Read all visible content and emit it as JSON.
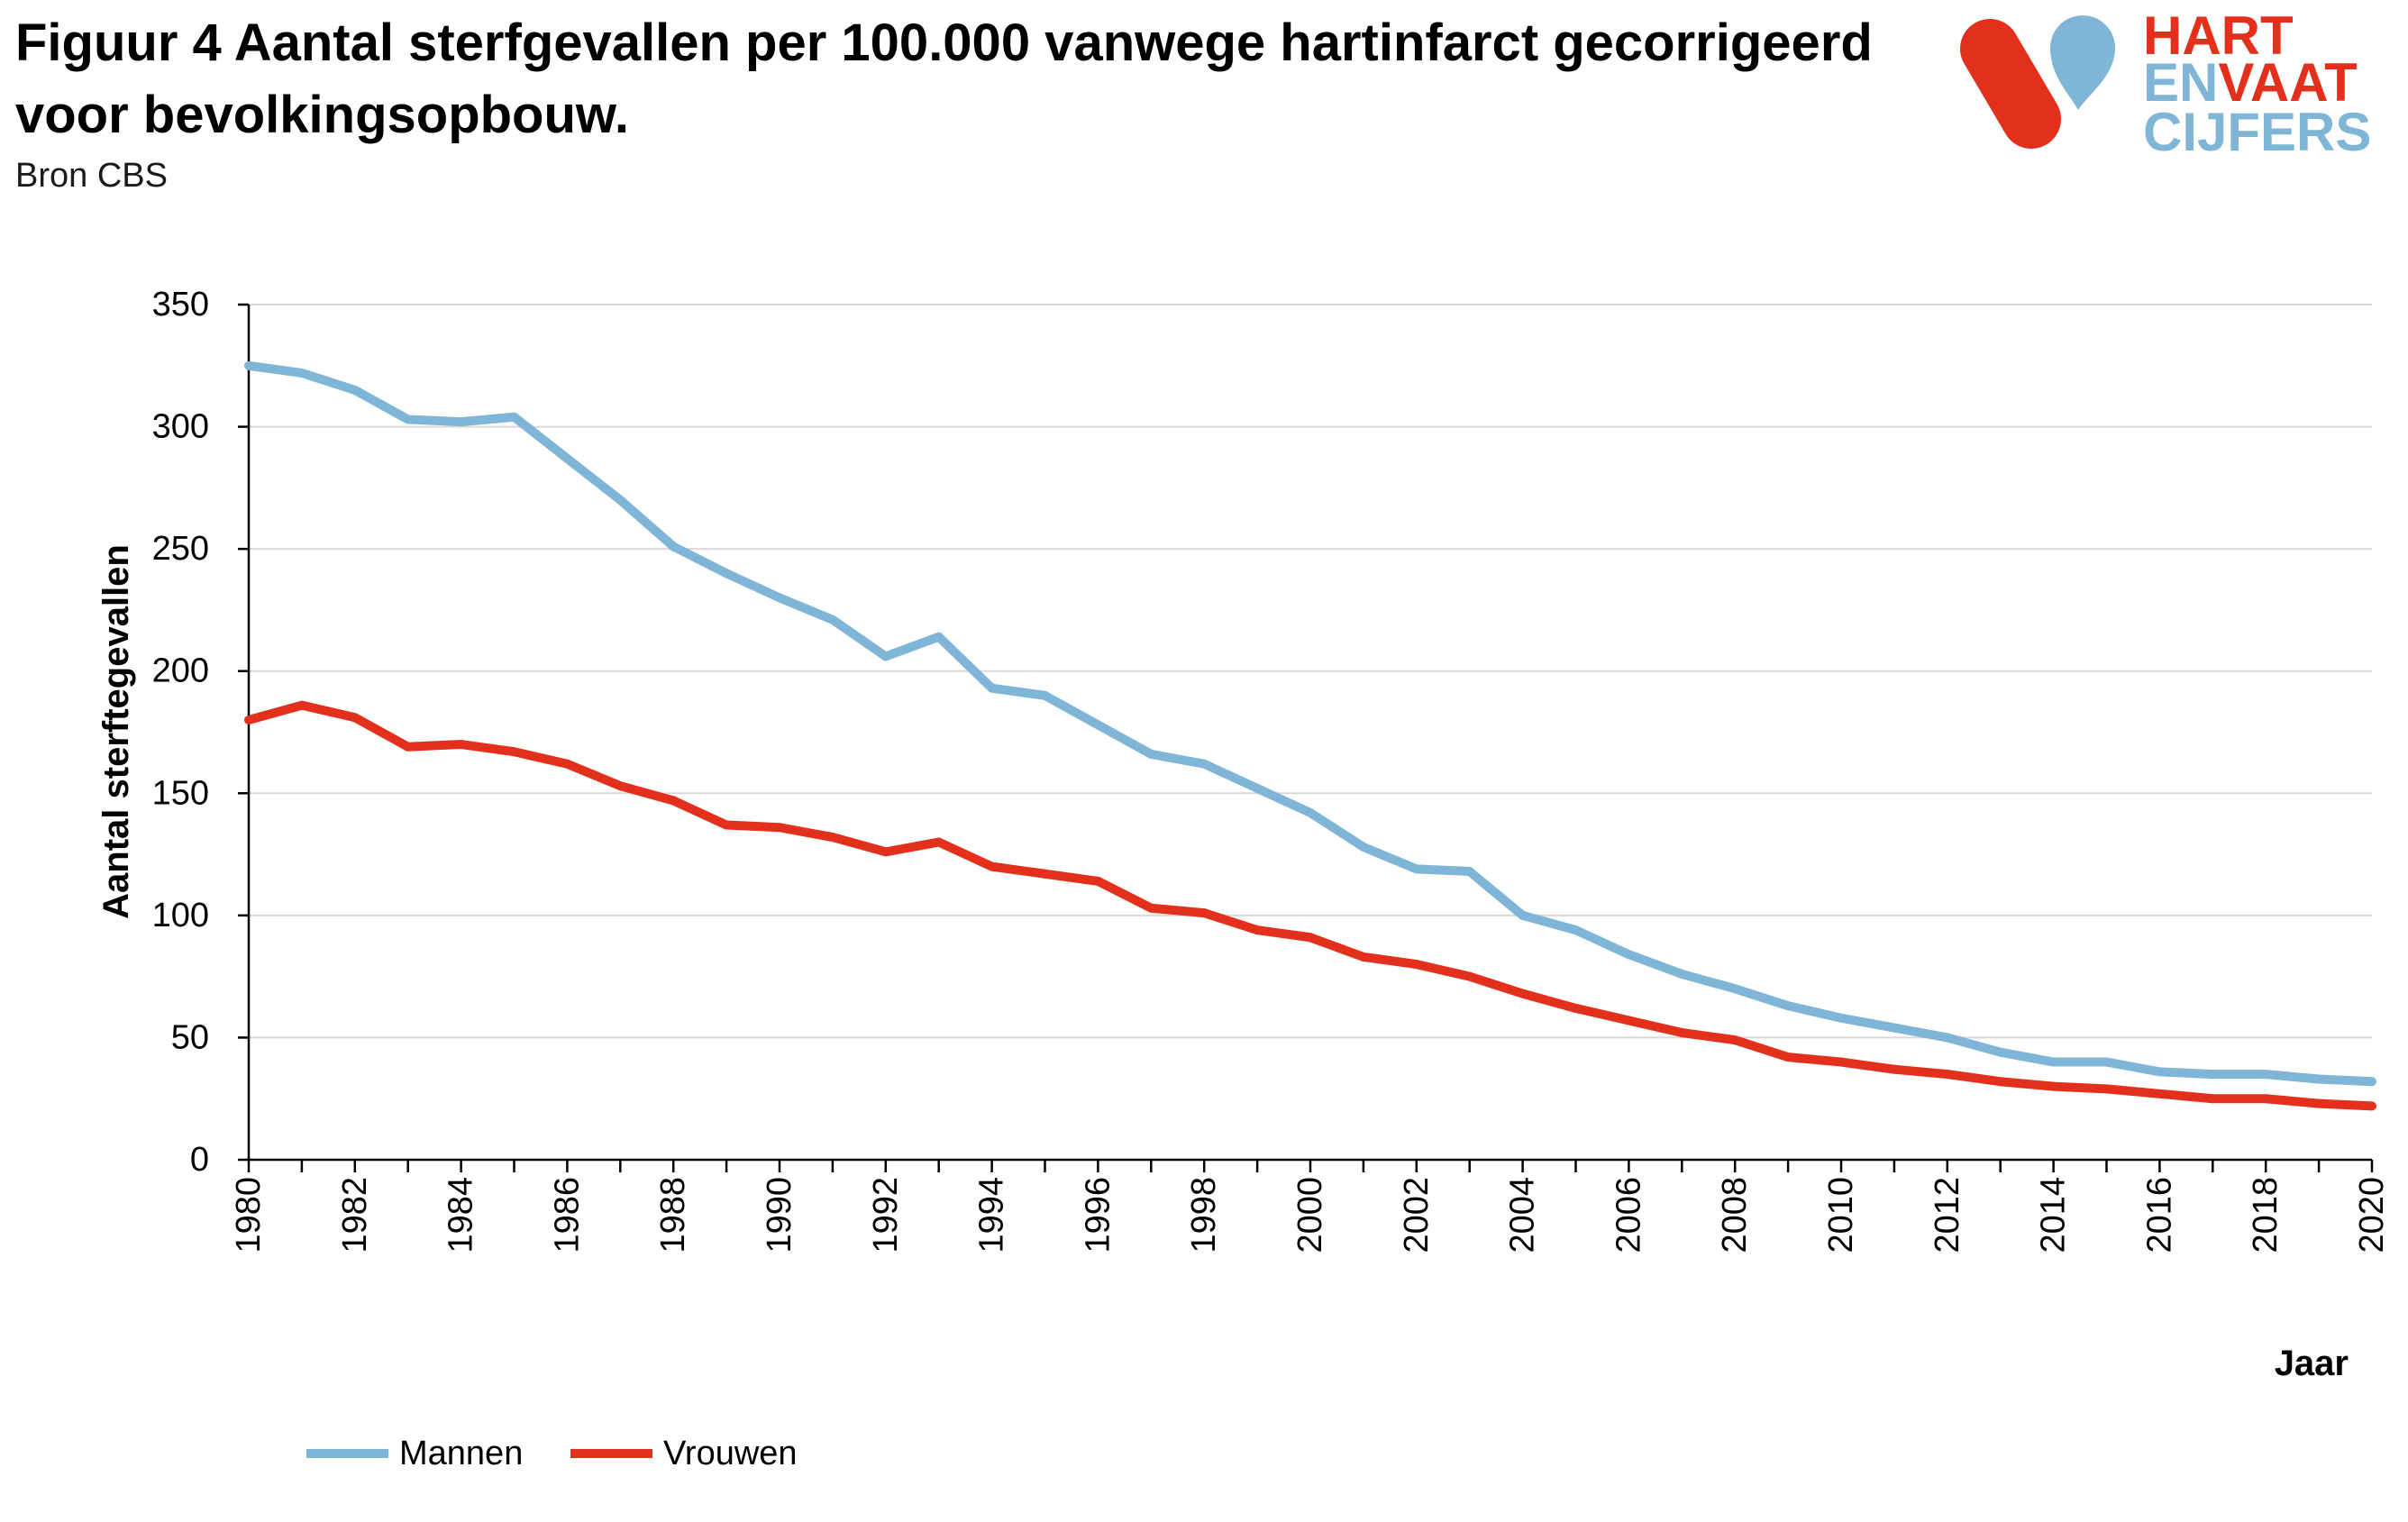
{
  "logo": {
    "line1": "HART",
    "line2a": "EN",
    "line2b": "VAAT",
    "line3": "CIJFERS"
  },
  "colors": {
    "brand_red": "#E3301C",
    "brand_blue": "#7FB5D6",
    "grid": "#D9D9D9",
    "axis": "#000000"
  },
  "chart_data": {
    "type": "line",
    "title": "Figuur 4 Aantal sterfgevallen per 100.000 vanwege hartinfarct gecorrigeerd voor bevolkingsopbouw.",
    "source": "Bron CBS",
    "xlabel": "Jaar",
    "ylabel": "Aantal sterftegevallen",
    "xlim": [
      1980,
      2020
    ],
    "ylim": [
      0,
      350
    ],
    "yticks": [
      0,
      50,
      100,
      150,
      200,
      250,
      300,
      350
    ],
    "xticks": [
      1980,
      1982,
      1984,
      1986,
      1988,
      1990,
      1992,
      1994,
      1996,
      1998,
      2000,
      2002,
      2004,
      2006,
      2008,
      2010,
      2012,
      2014,
      2016,
      2018,
      2020
    ],
    "grid": "horizontal",
    "legend": "bottom-left",
    "x": [
      1980,
      1981,
      1982,
      1983,
      1984,
      1985,
      1986,
      1987,
      1988,
      1989,
      1990,
      1991,
      1992,
      1993,
      1994,
      1995,
      1996,
      1997,
      1998,
      1999,
      2000,
      2001,
      2002,
      2003,
      2004,
      2005,
      2006,
      2007,
      2008,
      2009,
      2010,
      2011,
      2012,
      2013,
      2014,
      2015,
      2016,
      2017,
      2018,
      2019,
      2020
    ],
    "series": [
      {
        "name": "Mannen",
        "color": "#7FB5D6",
        "values": [
          325,
          322,
          315,
          303,
          302,
          304,
          287,
          270,
          251,
          240,
          230,
          221,
          206,
          214,
          193,
          190,
          178,
          166,
          162,
          152,
          142,
          128,
          119,
          118,
          100,
          94,
          84,
          76,
          70,
          63,
          58,
          54,
          50,
          44,
          40,
          40,
          36,
          35,
          35,
          33,
          32
        ]
      },
      {
        "name": "Vrouwen",
        "color": "#E3301C",
        "values": [
          180,
          186,
          181,
          169,
          170,
          167,
          162,
          153,
          147,
          137,
          136,
          132,
          126,
          130,
          120,
          117,
          114,
          103,
          101,
          94,
          91,
          83,
          80,
          75,
          68,
          62,
          57,
          52,
          49,
          42,
          40,
          37,
          35,
          32,
          30,
          29,
          27,
          25,
          25,
          23,
          22
        ]
      }
    ]
  }
}
